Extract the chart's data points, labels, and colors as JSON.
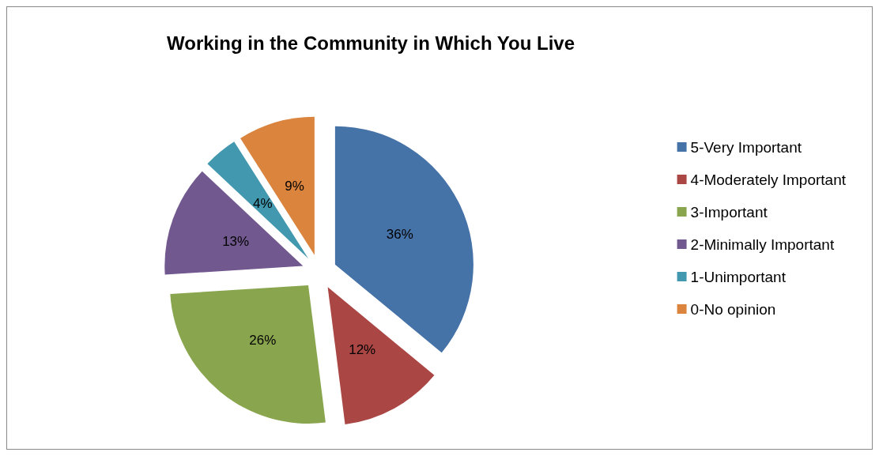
{
  "chart_data": {
    "type": "pie",
    "title": "Working in the Community in Which You Live",
    "categories": [
      "5-Very Important",
      "4-Moderately Important",
      "3-Important",
      "2-Minimally Important",
      "1-Unimportant",
      "0-No opinion"
    ],
    "values": [
      36,
      12,
      26,
      13,
      4,
      9
    ],
    "value_labels": [
      "36%",
      "12%",
      "26%",
      "13%",
      "4%",
      "9%"
    ],
    "colors": [
      "#4572a7",
      "#aa4643",
      "#89a54e",
      "#71588f",
      "#4198af",
      "#db843d"
    ],
    "legend": "right"
  }
}
